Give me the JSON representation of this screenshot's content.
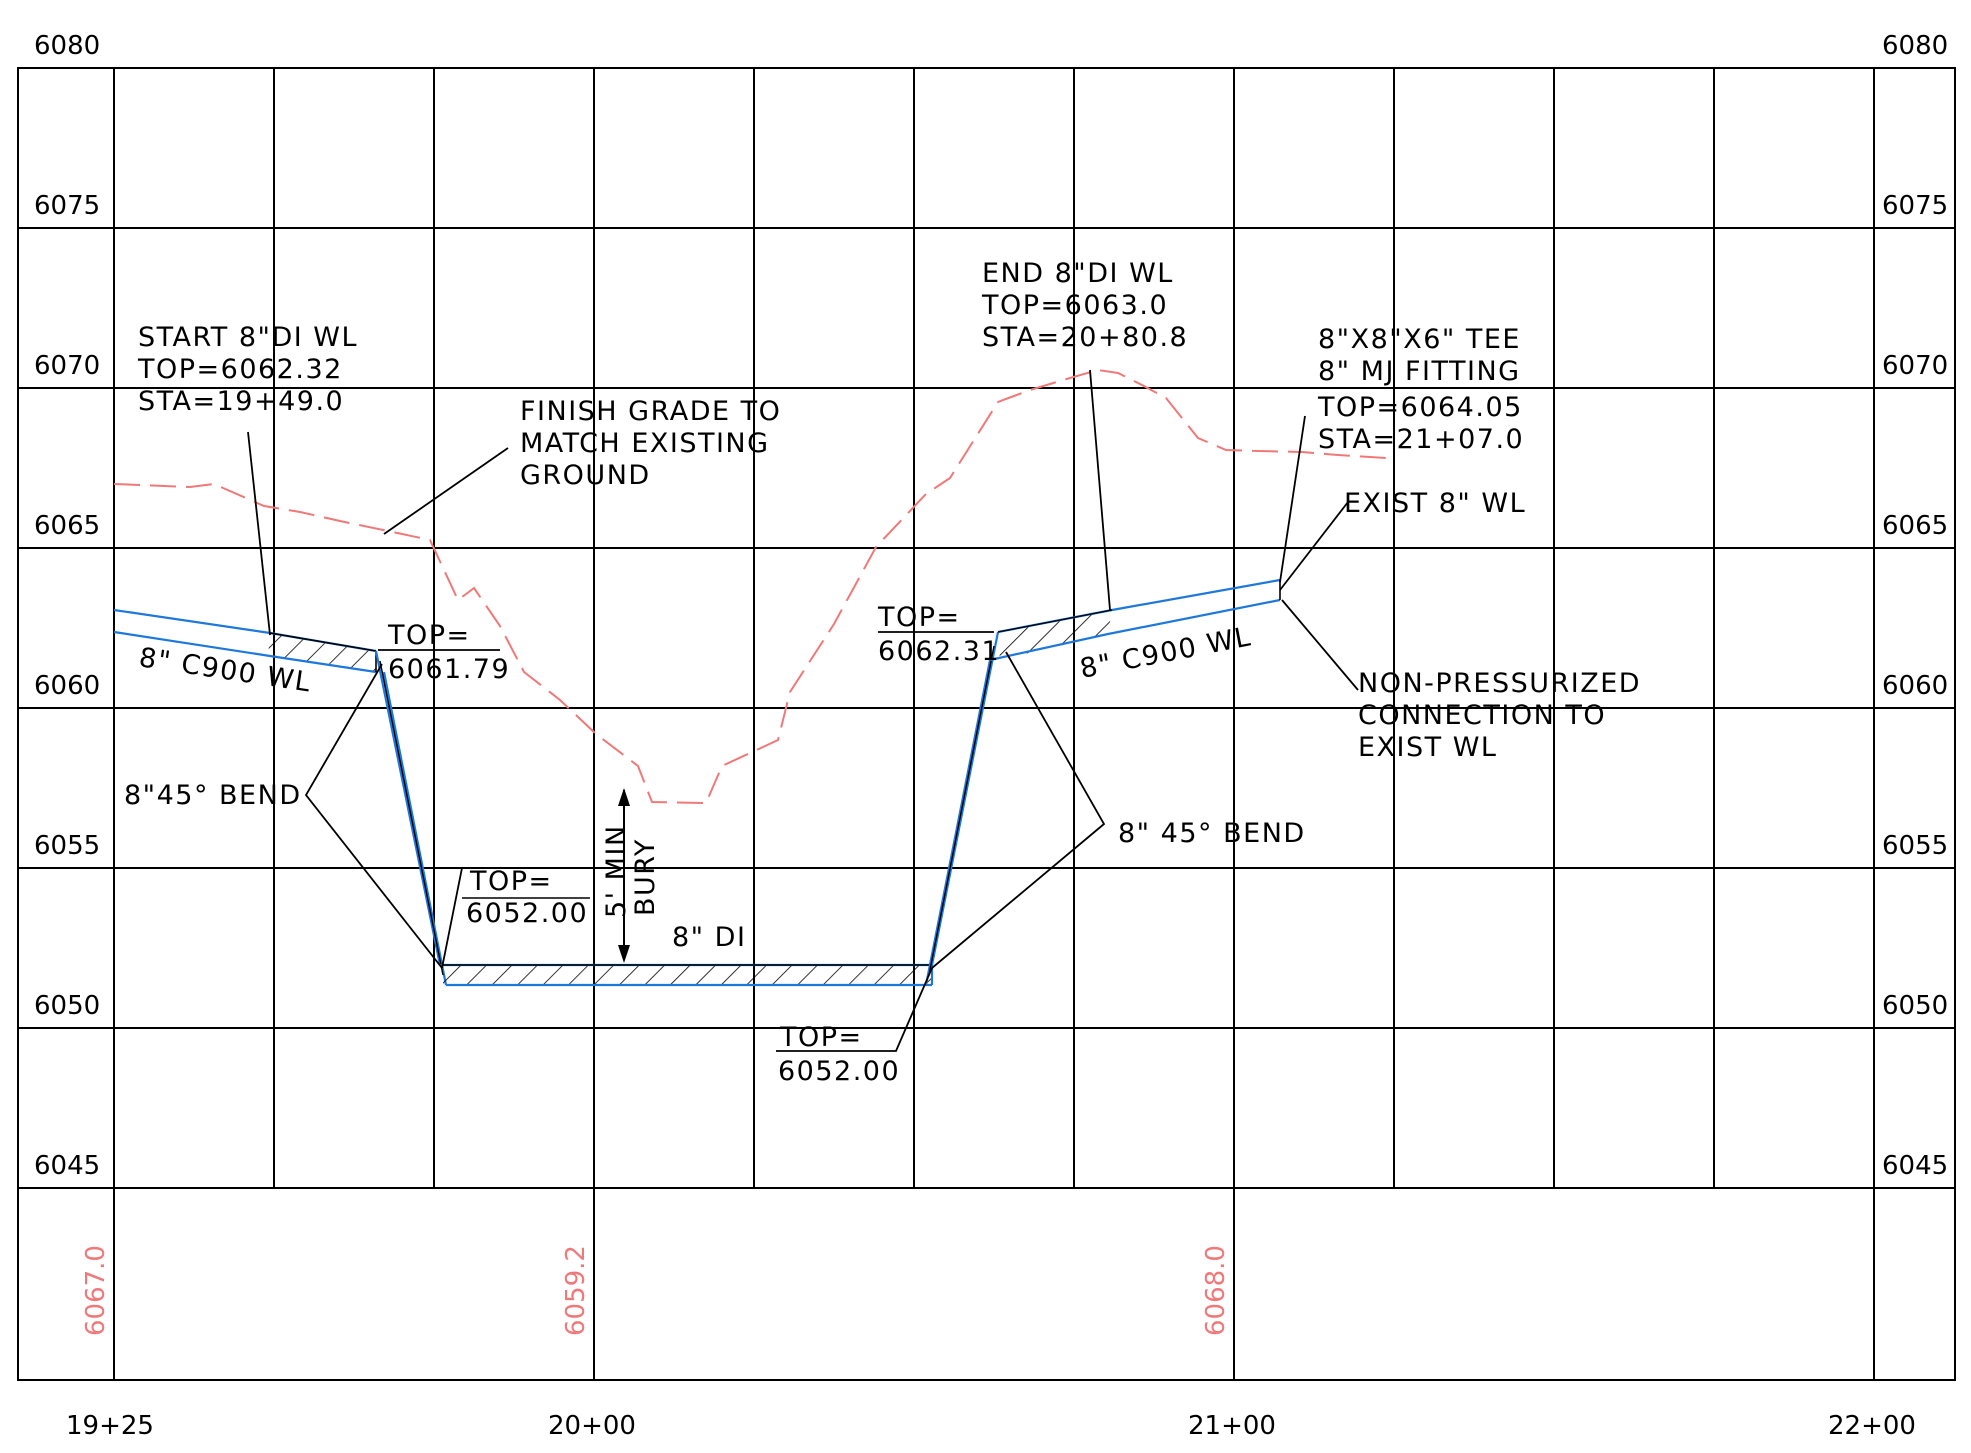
{
  "grid": {
    "left_elevations": [
      "6080",
      "6075",
      "6070",
      "6065",
      "6060",
      "6055",
      "6050",
      "6045"
    ],
    "right_elevations": [
      "6080",
      "6075",
      "6070",
      "6065",
      "6060",
      "6055",
      "6050",
      "6045"
    ],
    "stations": [
      "19+25",
      "20+00",
      "21+00",
      "22+00"
    ],
    "ground_elevations": [
      "6067.0",
      "6059.2",
      "6068.0"
    ]
  },
  "colors": {
    "grid": "#000000",
    "pipe": "#1e78dc",
    "existing_ground": "#f07878",
    "annotation": "#000000"
  },
  "annotations": {
    "start": {
      "line1": "START 8\"DI WL",
      "line2": "TOP=6062.32",
      "line3": "STA=19+49.0"
    },
    "finish_grade": {
      "line1": "FINISH GRADE TO",
      "line2": "MATCH EXISTING",
      "line3": "GROUND"
    },
    "end": {
      "line1": "END 8\"DI WL",
      "line2": "TOP=6063.0",
      "line3": "STA=20+80.8"
    },
    "tee": {
      "line1": "8\"X8\"X6\" TEE",
      "line2": "8\" MJ FITTING",
      "line3": "TOP=6064.05",
      "line4": "STA=21+07.0"
    },
    "exist_wl": "EXIST 8\" WL",
    "non_pressurized": {
      "line1": "NON-PRESSURIZED",
      "line2": "CONNECTION TO",
      "line3": "EXIST WL"
    },
    "left_pipe_label": "8\" C900 WL",
    "right_pipe_label": "8\" C900 WL",
    "left_bend": "8\"45° BEND",
    "right_bend": "8\" 45° BEND",
    "top_left": {
      "label": "TOP=",
      "value": "6061.79"
    },
    "top_bottom_left": {
      "label": "TOP=",
      "value": "6052.00"
    },
    "top_right": {
      "label": "TOP=",
      "value": "6062.31"
    },
    "top_bottom_right": {
      "label": "TOP=",
      "value": "6052.00"
    },
    "bury": {
      "line1": "5' MIN",
      "line2": "BURY"
    },
    "di_label": "8\" DI"
  }
}
